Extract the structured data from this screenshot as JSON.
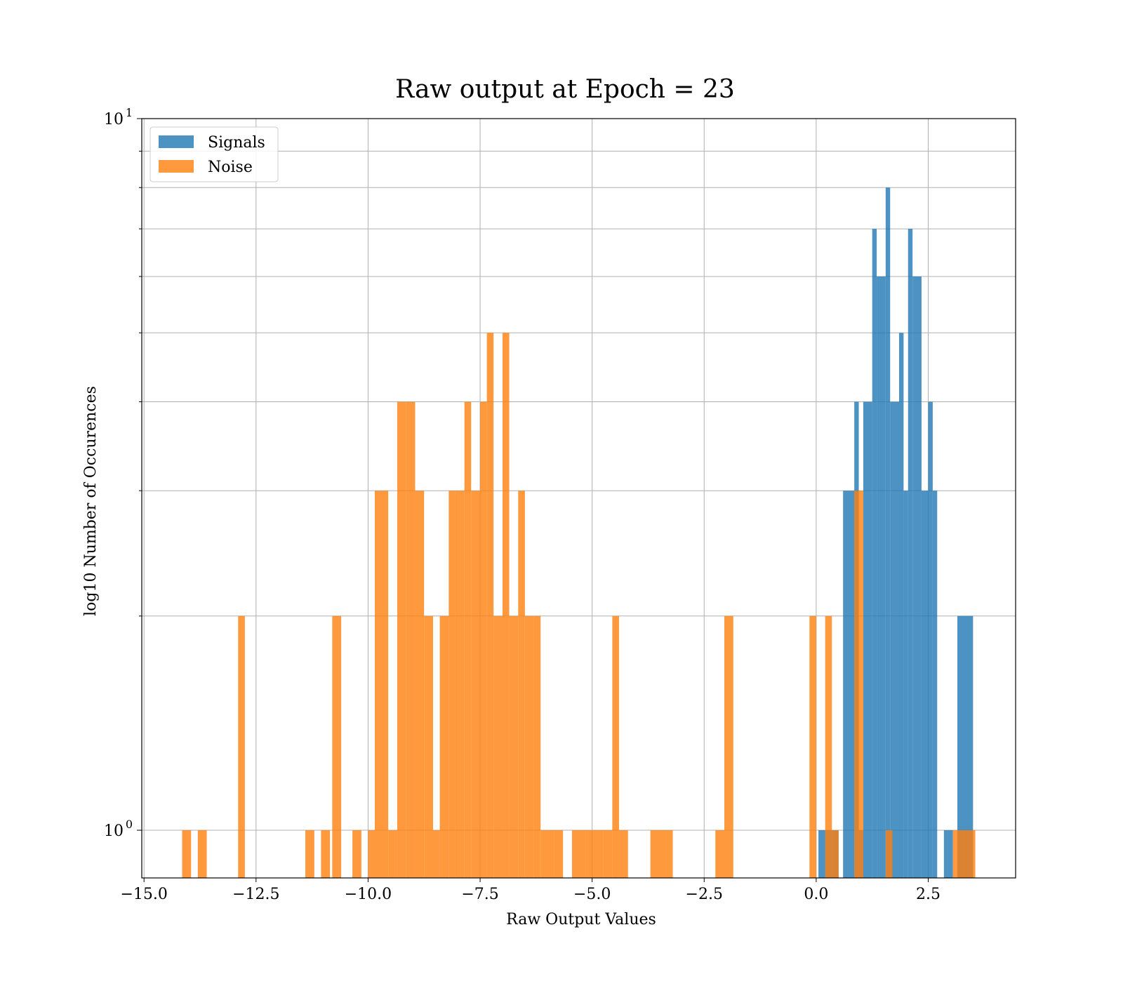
{
  "chart_data": {
    "type": "bar",
    "title": "Raw output at Epoch = 23",
    "xlabel": "Raw Output Values",
    "ylabel": "log10 Number of Occurences",
    "xlim": [
      -15.05,
      4.45
    ],
    "ylim": [
      0.857,
      10
    ],
    "yscale": "log",
    "grid": true,
    "legend_position": "top-left",
    "x_ticks": [
      {
        "value": -15.0,
        "label": "−15.0"
      },
      {
        "value": -12.5,
        "label": "−12.5"
      },
      {
        "value": -10.0,
        "label": "−10.0"
      },
      {
        "value": -7.5,
        "label": "−7.5"
      },
      {
        "value": -5.0,
        "label": "−5.0"
      },
      {
        "value": -2.5,
        "label": "−2.5"
      },
      {
        "value": 0.0,
        "label": "0.0"
      },
      {
        "value": 2.5,
        "label": "2.5"
      }
    ],
    "y_ticks": [
      {
        "value": 1,
        "base": "10",
        "exp": "0"
      },
      {
        "value": 10,
        "base": "10",
        "exp": "1"
      }
    ],
    "y_minor_ticks": [
      2,
      3,
      4,
      5,
      6,
      7,
      8,
      9
    ],
    "series": [
      {
        "name": "Signals",
        "color": "#1f77b4",
        "opacity": 0.8,
        "bins": [
          [
            0.05,
            0.2,
            1
          ],
          [
            0.2,
            0.35,
            1
          ],
          [
            0.35,
            0.5,
            1
          ],
          [
            0.6,
            0.85,
            3
          ],
          [
            0.85,
            0.95,
            4
          ],
          [
            0.95,
            1.05,
            1
          ],
          [
            1.05,
            1.25,
            4
          ],
          [
            1.25,
            1.35,
            7
          ],
          [
            1.35,
            1.55,
            6
          ],
          [
            1.55,
            1.65,
            8
          ],
          [
            1.65,
            1.85,
            4
          ],
          [
            1.85,
            1.95,
            5
          ],
          [
            1.95,
            2.05,
            3
          ],
          [
            2.05,
            2.15,
            7
          ],
          [
            2.15,
            2.35,
            6
          ],
          [
            2.35,
            2.5,
            3
          ],
          [
            2.5,
            2.6,
            4
          ],
          [
            2.6,
            2.7,
            3
          ],
          [
            2.85,
            3.05,
            1
          ],
          [
            3.15,
            3.5,
            2
          ]
        ]
      },
      {
        "name": "Noise",
        "color": "#ff7f0e",
        "opacity": 0.8,
        "bins": [
          [
            -14.15,
            -13.95,
            1
          ],
          [
            -13.8,
            -13.6,
            1
          ],
          [
            -12.9,
            -12.75,
            2
          ],
          [
            -11.4,
            -11.2,
            1
          ],
          [
            -11.05,
            -10.85,
            1
          ],
          [
            -10.8,
            -10.6,
            2
          ],
          [
            -10.35,
            -10.15,
            1
          ],
          [
            -10.0,
            -9.85,
            1
          ],
          [
            -9.85,
            -9.55,
            3
          ],
          [
            -9.55,
            -9.35,
            1
          ],
          [
            -9.35,
            -9.15,
            4
          ],
          [
            -9.15,
            -8.95,
            4
          ],
          [
            -8.95,
            -8.75,
            3
          ],
          [
            -8.75,
            -8.55,
            2
          ],
          [
            -8.55,
            -8.4,
            1
          ],
          [
            -8.4,
            -8.2,
            2
          ],
          [
            -8.2,
            -8.05,
            3
          ],
          [
            -8.05,
            -7.85,
            3
          ],
          [
            -7.85,
            -7.7,
            4
          ],
          [
            -7.7,
            -7.5,
            3
          ],
          [
            -7.5,
            -7.35,
            4
          ],
          [
            -7.35,
            -7.2,
            5
          ],
          [
            -7.2,
            -7.0,
            2
          ],
          [
            -7.0,
            -6.85,
            5
          ],
          [
            -6.85,
            -6.65,
            2
          ],
          [
            -6.65,
            -6.5,
            3
          ],
          [
            -6.5,
            -6.3,
            2
          ],
          [
            -6.3,
            -6.15,
            2
          ],
          [
            -6.15,
            -5.85,
            1
          ],
          [
            -5.85,
            -5.65,
            1
          ],
          [
            -5.45,
            -5.15,
            1
          ],
          [
            -5.15,
            -4.75,
            1
          ],
          [
            -4.75,
            -4.55,
            1
          ],
          [
            -4.55,
            -4.4,
            2
          ],
          [
            -4.4,
            -4.2,
            1
          ],
          [
            -3.7,
            -3.2,
            1
          ],
          [
            -2.25,
            -2.05,
            1
          ],
          [
            -2.05,
            -1.85,
            2
          ],
          [
            -0.15,
            0.0,
            2
          ],
          [
            0.2,
            0.35,
            2
          ],
          [
            0.35,
            0.5,
            1
          ],
          [
            0.85,
            1.05,
            3
          ],
          [
            1.55,
            1.7,
            1
          ],
          [
            3.05,
            3.55,
            1
          ]
        ]
      }
    ]
  }
}
